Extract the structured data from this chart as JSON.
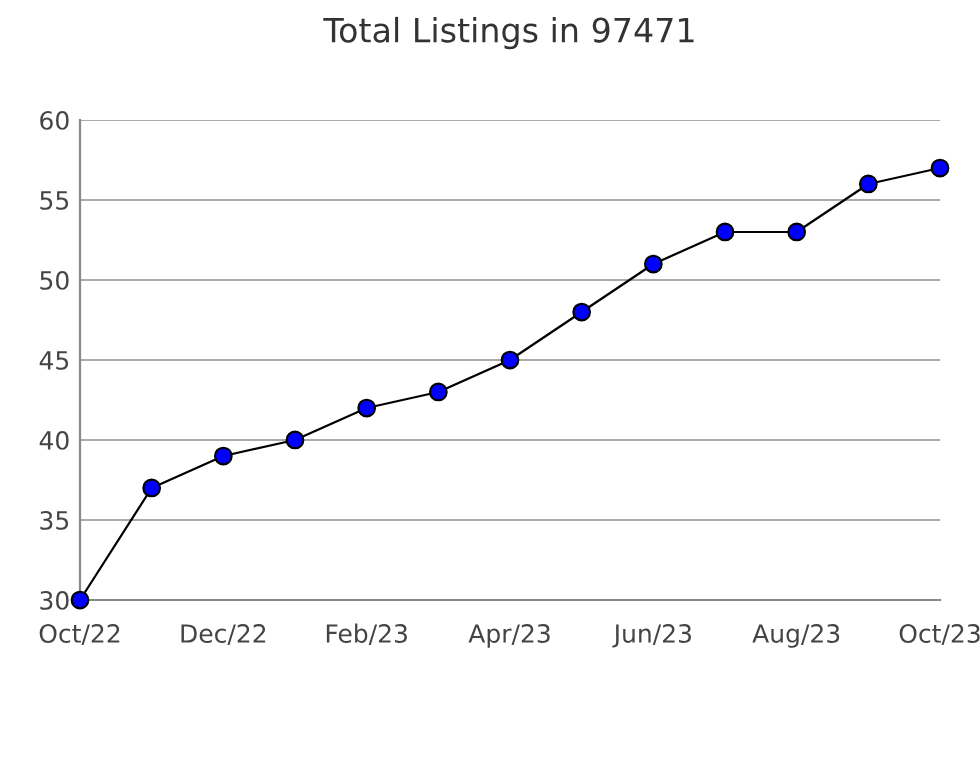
{
  "chart_data": {
    "type": "line",
    "title": "Total Listings in 97471",
    "categories": [
      "Oct/22",
      null,
      "Dec/22",
      null,
      "Feb/23",
      null,
      "Apr/23",
      null,
      "Jun/23",
      null,
      "Aug/23",
      null,
      "Oct/23"
    ],
    "series": [
      {
        "color": "#0000ff",
        "values": [
          30,
          37,
          39,
          40,
          42,
          43,
          45,
          48,
          51,
          53,
          53,
          56,
          57
        ]
      }
    ],
    "ylim": [
      30,
      60
    ],
    "yticks": [
      30,
      35,
      40,
      45,
      50,
      55,
      60
    ],
    "grid": "y",
    "marker": "circle",
    "line_style": "solid"
  }
}
